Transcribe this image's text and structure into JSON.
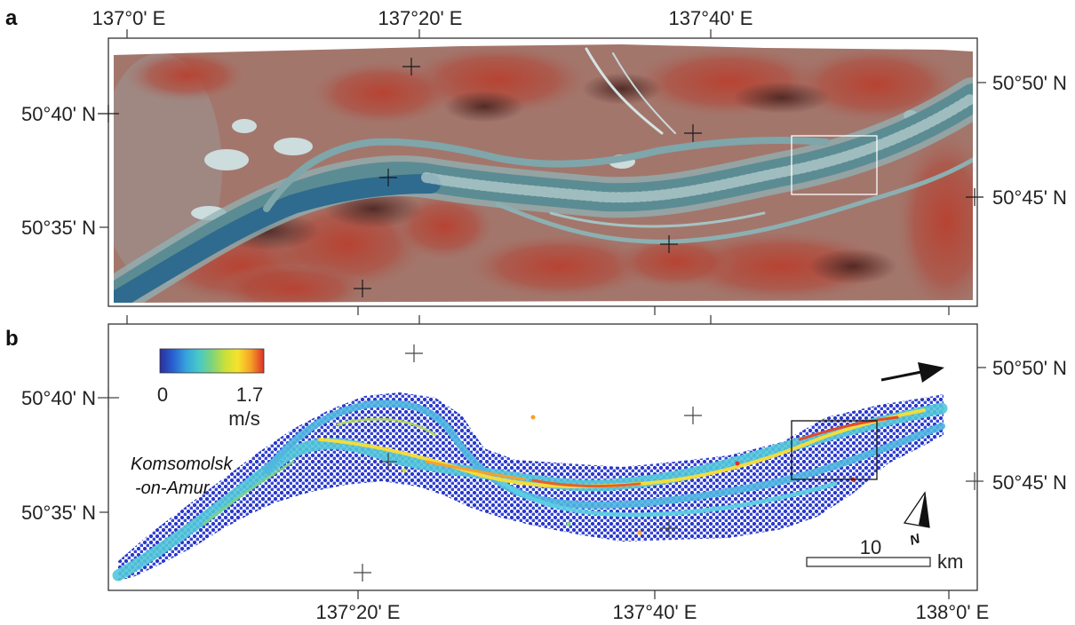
{
  "figure": {
    "panel_a": {
      "label": "a",
      "top_ticks": [
        "137°0' E",
        "137°20' E",
        "137°40' E"
      ],
      "left_ticks": [
        "50°40' N",
        "50°35' N"
      ],
      "right_ticks": [
        "50°50' N",
        "50°45' N"
      ]
    },
    "panel_b": {
      "label": "b",
      "bottom_ticks": [
        "137°20' E",
        "137°40' E",
        "138°0' E"
      ],
      "left_ticks": [
        "50°40' N",
        "50°35' N"
      ],
      "right_ticks": [
        "50°50' N",
        "50°45' N"
      ],
      "colorbar": {
        "min": "0",
        "max": "1.7",
        "unit": "m/s",
        "colors": [
          "#2b2f9e",
          "#2a5fd0",
          "#36a2dd",
          "#48c9c7",
          "#7ed37c",
          "#c9e03a",
          "#f6e22c",
          "#f5a126",
          "#e0302a"
        ]
      },
      "place_label": [
        "Komsomolsk",
        "-on-Amur"
      ],
      "scale_bar": {
        "value": "10",
        "unit": "km"
      },
      "north_label": "N"
    }
  }
}
